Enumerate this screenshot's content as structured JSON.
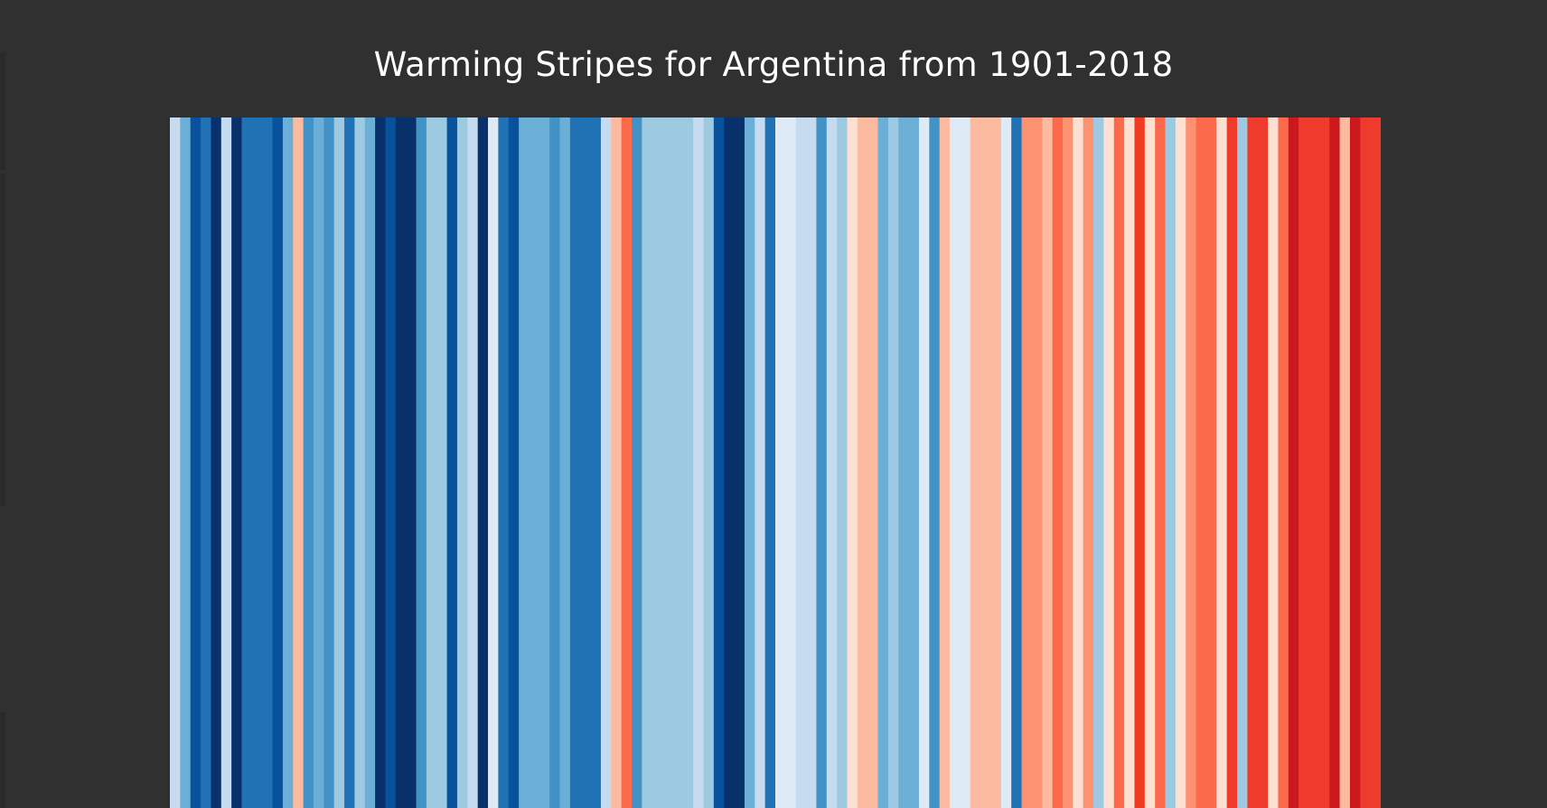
{
  "chart_data": {
    "type": "heatmap",
    "title": "Warming Stripes for Argentina from 1901-2018",
    "start_year": 1901,
    "end_year": 2018,
    "colors": [
      "#c6dbef",
      "#6baed6",
      "#08519c",
      "#2171b5",
      "#08306b",
      "#c6dbef",
      "#08306b",
      "#2171b5",
      "#2171b5",
      "#2171b5",
      "#08519c",
      "#6baed6",
      "#fcbba1",
      "#4292c6",
      "#6baed6",
      "#4292c6",
      "#9ecae1",
      "#2171b5",
      "#9ecae1",
      "#6baed6",
      "#08306b",
      "#08519c",
      "#08306b",
      "#08306b",
      "#4292c6",
      "#9ecae1",
      "#9ecae1",
      "#08519c",
      "#9ecae1",
      "#c6dbef",
      "#08306b",
      "#deebf7",
      "#2171b5",
      "#08519c",
      "#6baed6",
      "#6baed6",
      "#6baed6",
      "#4292c6",
      "#6baed6",
      "#2171b5",
      "#2171b5",
      "#2171b5",
      "#c6dbef",
      "#fcbba1",
      "#fb6a4a",
      "#4292c6",
      "#9ecae1",
      "#9ecae1",
      "#9ecae1",
      "#9ecae1",
      "#9ecae1",
      "#c6dbef",
      "#9ecae1",
      "#08519c",
      "#08306b",
      "#08306b",
      "#6baed6",
      "#c6dbef",
      "#2171b5",
      "#deebf7",
      "#deebf7",
      "#c6dbef",
      "#c6dbef",
      "#4292c6",
      "#c6dbef",
      "#9ecae1",
      "#fee0d2",
      "#fcbba1",
      "#fcbba1",
      "#6baed6",
      "#9ecae1",
      "#6baed6",
      "#6baed6",
      "#deebf7",
      "#4292c6",
      "#fcbba1",
      "#deebf7",
      "#deebf7",
      "#fcbba1",
      "#fcbba1",
      "#fcbba1",
      "#deebf7",
      "#2171b5",
      "#fc9272",
      "#fc9272",
      "#fcbba1",
      "#fb6a4a",
      "#fc9272",
      "#fee0d2",
      "#fc9272",
      "#9ecae1",
      "#fee0d2",
      "#fb6a4a",
      "#fee0d2",
      "#f03b20",
      "#fee0d2",
      "#fb6a4a",
      "#9ecae1",
      "#fee0d2",
      "#fc9272",
      "#fb6a4a",
      "#fb6a4a",
      "#fee0d2",
      "#ef3b2c",
      "#9ecae1",
      "#ef3b2c",
      "#ef3b2c",
      "#fee0d2",
      "#fb6a4a",
      "#cb181d",
      "#ef3b2c",
      "#ef3b2c",
      "#ef3b2c",
      "#cb181d",
      "#fcbba1",
      "#cb181d",
      "#ef3b2c",
      "#ef3b2c"
    ]
  }
}
